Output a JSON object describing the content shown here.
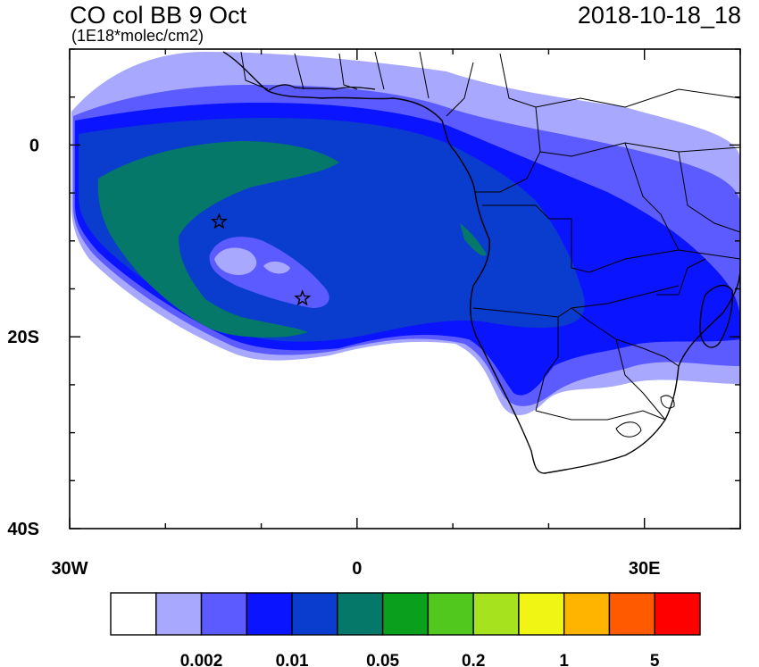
{
  "title": "CO col BB 9 Oct",
  "units": "(1E18*molec/cm2)",
  "timestamp": "2018-10-18_18",
  "axes": {
    "x_ticks": [
      {
        "value": -30,
        "label": "30W"
      },
      {
        "value": 0,
        "label": "0"
      },
      {
        "value": 30,
        "label": "30E"
      }
    ],
    "y_ticks": [
      {
        "value": 0,
        "label": "0"
      },
      {
        "value": -20,
        "label": "20S"
      },
      {
        "value": -40,
        "label": "40S"
      }
    ],
    "lon_range": [
      -30,
      40
    ],
    "lat_range": [
      -40,
      10
    ]
  },
  "markers": [
    {
      "name": "star-ascension",
      "lon": -14.4,
      "lat": -8.0
    },
    {
      "name": "star-st-helena",
      "lon": -5.7,
      "lat": -16.0
    }
  ],
  "colorbar": {
    "colors": [
      "#ffffff",
      "#a8a8ff",
      "#5b5bff",
      "#0a14ff",
      "#0a3ccd",
      "#06786a",
      "#0aa01e",
      "#50c81e",
      "#a6e21e",
      "#f0f514",
      "#ffb400",
      "#ff5a00",
      "#ff0000"
    ],
    "labels": [
      "0.002",
      "0.01",
      "0.05",
      "0.2",
      "1",
      "5"
    ]
  }
}
